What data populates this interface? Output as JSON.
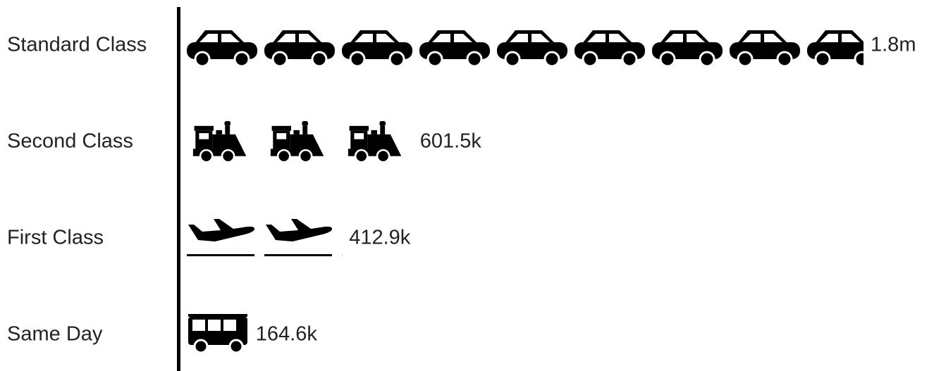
{
  "chart_data": {
    "type": "pictograph",
    "categories": [
      "Standard Class",
      "Second Class",
      "First Class",
      "Same Day"
    ],
    "values": [
      1800000,
      601500,
      412900,
      164600
    ],
    "value_labels": [
      "1.8m",
      "601.5k",
      "412.9k",
      "164.6k"
    ],
    "color": "#000000"
  }
}
